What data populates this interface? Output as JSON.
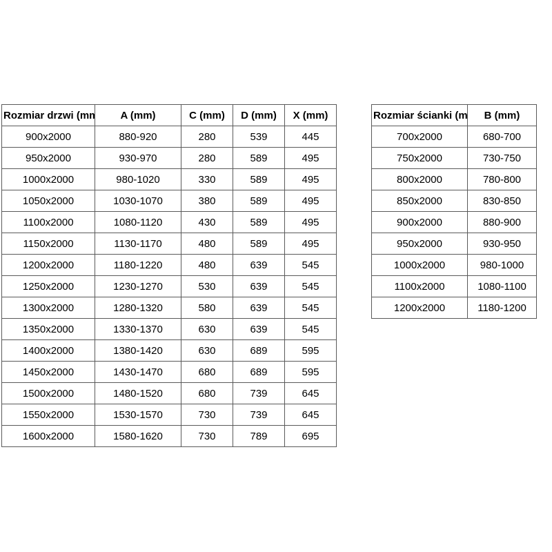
{
  "page": {
    "background_color": "#ffffff",
    "text_color": "#000000",
    "grid_color": "#595959"
  },
  "chart_data": [
    {
      "type": "table",
      "name": "door_dimensions",
      "title": "Rozmiar drzwi (mm)",
      "columns": [
        "Rozmiar drzwi (mm)",
        "A (mm)",
        "C (mm)",
        "D (mm)",
        "X (mm)"
      ],
      "rows": [
        [
          "900x2000",
          "880-920",
          "280",
          "539",
          "445"
        ],
        [
          "950x2000",
          "930-970",
          "280",
          "589",
          "495"
        ],
        [
          "1000x2000",
          "980-1020",
          "330",
          "589",
          "495"
        ],
        [
          "1050x2000",
          "1030-1070",
          "380",
          "589",
          "495"
        ],
        [
          "1100x2000",
          "1080-1120",
          "430",
          "589",
          "495"
        ],
        [
          "1150x2000",
          "1130-1170",
          "480",
          "589",
          "495"
        ],
        [
          "1200x2000",
          "1180-1220",
          "480",
          "639",
          "545"
        ],
        [
          "1250x2000",
          "1230-1270",
          "530",
          "639",
          "545"
        ],
        [
          "1300x2000",
          "1280-1320",
          "580",
          "639",
          "545"
        ],
        [
          "1350x2000",
          "1330-1370",
          "630",
          "639",
          "545"
        ],
        [
          "1400x2000",
          "1380-1420",
          "630",
          "689",
          "595"
        ],
        [
          "1450x2000",
          "1430-1470",
          "680",
          "689",
          "595"
        ],
        [
          "1500x2000",
          "1480-1520",
          "680",
          "739",
          "645"
        ],
        [
          "1550x2000",
          "1530-1570",
          "730",
          "739",
          "645"
        ],
        [
          "1600x2000",
          "1580-1620",
          "730",
          "789",
          "695"
        ]
      ]
    },
    {
      "type": "table",
      "name": "wall_dimensions",
      "title": "Rozmiar ścianki (mm)",
      "columns": [
        "Rozmiar ścianki (mm)",
        "B (mm)"
      ],
      "rows": [
        [
          "700x2000",
          "680-700"
        ],
        [
          "750x2000",
          "730-750"
        ],
        [
          "800x2000",
          "780-800"
        ],
        [
          "850x2000",
          "830-850"
        ],
        [
          "900x2000",
          "880-900"
        ],
        [
          "950x2000",
          "930-950"
        ],
        [
          "1000x2000",
          "980-1000"
        ],
        [
          "1100x2000",
          "1080-1100"
        ],
        [
          "1200x2000",
          "1180-1200"
        ]
      ]
    }
  ]
}
